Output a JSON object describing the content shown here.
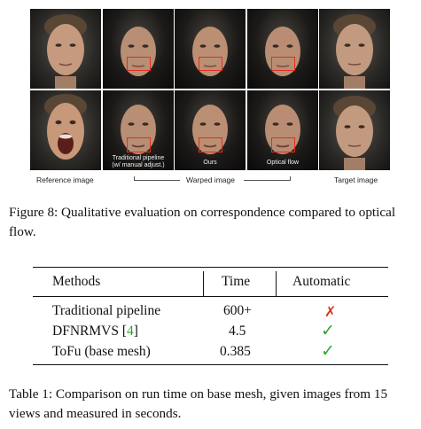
{
  "figure": {
    "inner_labels": {
      "traditional_line1": "Traditional pipeline",
      "traditional_line2": "(w/ manual adjust.)",
      "ours": "Ours",
      "optical_flow": "Optical flow"
    },
    "bottom_labels": {
      "reference": "Reference image",
      "warped": "Warped image",
      "target": "Target image"
    },
    "caption": "Figure 8: Qualitative evaluation on correspondence compared to optical flow.",
    "colors": {
      "highlight_box": "#e0301e"
    }
  },
  "table": {
    "headers": [
      "Methods",
      "Time",
      "Automatic"
    ],
    "rows": [
      {
        "method": "Traditional pipeline",
        "cite": "",
        "time": "600+",
        "automatic": "✗"
      },
      {
        "method": "DFNRMVS [",
        "cite": "4",
        "cite_close": "]",
        "time": "4.5",
        "automatic": "✓"
      },
      {
        "method": "ToFu (base mesh)",
        "cite": "",
        "time": "0.385",
        "automatic": "✓"
      }
    ],
    "caption": "Table 1: Comparison on run time on base mesh, given images from 15 views and measured in seconds.",
    "colors": {
      "cross": "#e0301e",
      "check": "#2fa52f",
      "citation": "#22a822"
    }
  }
}
